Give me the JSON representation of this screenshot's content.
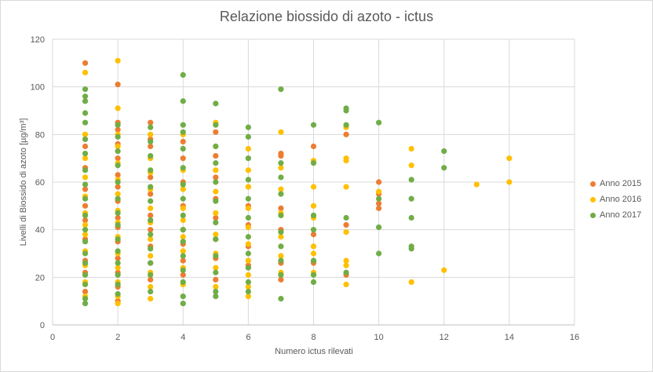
{
  "chart_data": {
    "type": "scatter",
    "title": "Relazione biossido di azoto - ictus",
    "xlabel": "Numero  ictus rilevati",
    "ylabel": "Livelli di Biossido di azoto [µg/m³]",
    "xlim": [
      0,
      16
    ],
    "ylim": [
      0,
      120
    ],
    "xticks": [
      0,
      2,
      4,
      6,
      8,
      10,
      12,
      14,
      16
    ],
    "yticks": [
      0,
      20,
      40,
      60,
      80,
      100,
      120
    ],
    "grid": true,
    "legend_position": "right",
    "series": [
      {
        "name": "Anno 2015",
        "color": "#ED7D31",
        "points": [
          [
            1,
            110
          ],
          [
            1,
            75
          ],
          [
            1,
            66
          ],
          [
            1,
            57
          ],
          [
            1,
            50
          ],
          [
            1,
            44
          ],
          [
            1,
            36
          ],
          [
            1,
            27
          ],
          [
            1,
            22
          ],
          [
            1,
            14
          ],
          [
            2,
            101
          ],
          [
            2,
            85
          ],
          [
            2,
            82
          ],
          [
            2,
            76
          ],
          [
            2,
            70
          ],
          [
            2,
            63
          ],
          [
            2,
            58
          ],
          [
            2,
            52
          ],
          [
            2,
            45
          ],
          [
            2,
            41
          ],
          [
            2,
            35
          ],
          [
            2,
            28
          ],
          [
            2,
            22
          ],
          [
            2,
            16
          ],
          [
            2,
            10
          ],
          [
            3,
            85
          ],
          [
            3,
            78
          ],
          [
            3,
            75
          ],
          [
            3,
            62
          ],
          [
            3,
            55
          ],
          [
            3,
            46
          ],
          [
            3,
            40
          ],
          [
            3,
            33
          ],
          [
            3,
            26
          ],
          [
            3,
            19
          ],
          [
            4,
            77
          ],
          [
            4,
            70
          ],
          [
            4,
            60
          ],
          [
            4,
            50
          ],
          [
            4,
            40
          ],
          [
            4,
            34
          ],
          [
            4,
            27
          ],
          [
            4,
            21
          ],
          [
            5,
            81
          ],
          [
            5,
            71
          ],
          [
            5,
            62
          ],
          [
            5,
            53
          ],
          [
            5,
            45
          ],
          [
            5,
            36
          ],
          [
            5,
            28
          ],
          [
            5,
            19
          ],
          [
            6,
            58
          ],
          [
            6,
            50
          ],
          [
            6,
            42
          ],
          [
            6,
            33
          ],
          [
            6,
            25
          ],
          [
            7,
            72
          ],
          [
            7,
            71
          ],
          [
            7,
            49
          ],
          [
            7,
            40
          ],
          [
            7,
            26
          ],
          [
            7,
            19
          ],
          [
            8,
            75
          ],
          [
            8,
            38
          ],
          [
            8,
            26
          ],
          [
            9,
            80
          ],
          [
            9,
            42
          ],
          [
            9,
            21
          ],
          [
            10,
            60
          ],
          [
            10,
            55
          ],
          [
            10,
            51
          ],
          [
            10,
            49
          ]
        ]
      },
      {
        "name": "Anno 2016",
        "color": "#FFC000",
        "points": [
          [
            1,
            106
          ],
          [
            1,
            80
          ],
          [
            1,
            70
          ],
          [
            1,
            62
          ],
          [
            1,
            54
          ],
          [
            1,
            47
          ],
          [
            1,
            42
          ],
          [
            1,
            38
          ],
          [
            1,
            31
          ],
          [
            1,
            25
          ],
          [
            1,
            18
          ],
          [
            1,
            12
          ],
          [
            2,
            111
          ],
          [
            2,
            91
          ],
          [
            2,
            80
          ],
          [
            2,
            75
          ],
          [
            2,
            68
          ],
          [
            2,
            61
          ],
          [
            2,
            55
          ],
          [
            2,
            48
          ],
          [
            2,
            43
          ],
          [
            2,
            37
          ],
          [
            2,
            30
          ],
          [
            2,
            24
          ],
          [
            2,
            18
          ],
          [
            2,
            12
          ],
          [
            2,
            9
          ],
          [
            3,
            80
          ],
          [
            3,
            70
          ],
          [
            3,
            64
          ],
          [
            3,
            57
          ],
          [
            3,
            49
          ],
          [
            3,
            43
          ],
          [
            3,
            36
          ],
          [
            3,
            29
          ],
          [
            3,
            22
          ],
          [
            3,
            16
          ],
          [
            3,
            11
          ],
          [
            4,
            80
          ],
          [
            4,
            65
          ],
          [
            4,
            57
          ],
          [
            4,
            49
          ],
          [
            4,
            44
          ],
          [
            4,
            37
          ],
          [
            4,
            31
          ],
          [
            4,
            24
          ],
          [
            4,
            17
          ],
          [
            5,
            85
          ],
          [
            5,
            75
          ],
          [
            5,
            65
          ],
          [
            5,
            56
          ],
          [
            5,
            47
          ],
          [
            5,
            38
          ],
          [
            5,
            30
          ],
          [
            5,
            24
          ],
          [
            5,
            16
          ],
          [
            6,
            74
          ],
          [
            6,
            65
          ],
          [
            6,
            58
          ],
          [
            6,
            49
          ],
          [
            6,
            41
          ],
          [
            6,
            34
          ],
          [
            6,
            27
          ],
          [
            6,
            21
          ],
          [
            6,
            16
          ],
          [
            6,
            12
          ],
          [
            7,
            81
          ],
          [
            7,
            66
          ],
          [
            7,
            57
          ],
          [
            7,
            47
          ],
          [
            7,
            37
          ],
          [
            7,
            29
          ],
          [
            7,
            22
          ],
          [
            8,
            69
          ],
          [
            8,
            58
          ],
          [
            8,
            50
          ],
          [
            8,
            45
          ],
          [
            8,
            33
          ],
          [
            8,
            30
          ],
          [
            8,
            22
          ],
          [
            9,
            83
          ],
          [
            9,
            70
          ],
          [
            9,
            69
          ],
          [
            9,
            58
          ],
          [
            9,
            39
          ],
          [
            9,
            27
          ],
          [
            9,
            25
          ],
          [
            9,
            17
          ],
          [
            10,
            56
          ],
          [
            11,
            74
          ],
          [
            11,
            67
          ],
          [
            11,
            18
          ],
          [
            12,
            23
          ],
          [
            13,
            59
          ],
          [
            14,
            70
          ],
          [
            14,
            60
          ]
        ]
      },
      {
        "name": "Anno 2017",
        "color": "#70AD47",
        "points": [
          [
            1,
            99
          ],
          [
            1,
            96
          ],
          [
            1,
            94
          ],
          [
            1,
            89
          ],
          [
            1,
            85
          ],
          [
            1,
            78
          ],
          [
            1,
            72
          ],
          [
            1,
            65
          ],
          [
            1,
            59
          ],
          [
            1,
            53
          ],
          [
            1,
            46
          ],
          [
            1,
            40
          ],
          [
            1,
            35
          ],
          [
            1,
            30
          ],
          [
            1,
            26
          ],
          [
            1,
            21
          ],
          [
            1,
            17
          ],
          [
            1,
            11
          ],
          [
            1,
            9
          ],
          [
            2,
            84
          ],
          [
            2,
            79
          ],
          [
            2,
            73
          ],
          [
            2,
            67
          ],
          [
            2,
            60
          ],
          [
            2,
            53
          ],
          [
            2,
            47
          ],
          [
            2,
            42
          ],
          [
            2,
            36
          ],
          [
            2,
            31
          ],
          [
            2,
            26
          ],
          [
            2,
            21
          ],
          [
            2,
            17
          ],
          [
            2,
            13
          ],
          [
            3,
            83
          ],
          [
            3,
            77
          ],
          [
            3,
            71
          ],
          [
            3,
            65
          ],
          [
            3,
            58
          ],
          [
            3,
            52
          ],
          [
            3,
            44
          ],
          [
            3,
            38
          ],
          [
            3,
            32
          ],
          [
            3,
            26
          ],
          [
            3,
            21
          ],
          [
            3,
            14
          ],
          [
            4,
            105
          ],
          [
            4,
            94
          ],
          [
            4,
            84
          ],
          [
            4,
            81
          ],
          [
            4,
            74
          ],
          [
            4,
            66
          ],
          [
            4,
            59
          ],
          [
            4,
            53
          ],
          [
            4,
            46
          ],
          [
            4,
            40
          ],
          [
            4,
            35
          ],
          [
            4,
            29
          ],
          [
            4,
            23
          ],
          [
            4,
            18
          ],
          [
            4,
            12
          ],
          [
            4,
            9
          ],
          [
            5,
            93
          ],
          [
            5,
            84
          ],
          [
            5,
            75
          ],
          [
            5,
            68
          ],
          [
            5,
            60
          ],
          [
            5,
            52
          ],
          [
            5,
            43
          ],
          [
            5,
            36
          ],
          [
            5,
            29
          ],
          [
            5,
            22
          ],
          [
            5,
            14
          ],
          [
            5,
            12
          ],
          [
            6,
            83
          ],
          [
            6,
            79
          ],
          [
            6,
            70
          ],
          [
            6,
            61
          ],
          [
            6,
            53
          ],
          [
            6,
            45
          ],
          [
            6,
            37
          ],
          [
            6,
            30
          ],
          [
            6,
            24
          ],
          [
            6,
            18
          ],
          [
            6,
            14
          ],
          [
            7,
            99
          ],
          [
            7,
            68
          ],
          [
            7,
            62
          ],
          [
            7,
            55
          ],
          [
            7,
            46
          ],
          [
            7,
            39
          ],
          [
            7,
            33
          ],
          [
            7,
            27
          ],
          [
            7,
            21
          ],
          [
            7,
            11
          ],
          [
            8,
            84
          ],
          [
            8,
            68
          ],
          [
            8,
            46
          ],
          [
            8,
            40
          ],
          [
            8,
            27
          ],
          [
            8,
            21
          ],
          [
            8,
            18
          ],
          [
            9,
            91
          ],
          [
            9,
            90
          ],
          [
            9,
            84
          ],
          [
            9,
            45
          ],
          [
            9,
            22
          ],
          [
            10,
            85
          ],
          [
            10,
            53
          ],
          [
            10,
            41
          ],
          [
            10,
            30
          ],
          [
            11,
            61
          ],
          [
            11,
            53
          ],
          [
            11,
            45
          ],
          [
            11,
            33
          ],
          [
            11,
            32
          ],
          [
            12,
            73
          ],
          [
            12,
            66
          ]
        ]
      }
    ]
  }
}
